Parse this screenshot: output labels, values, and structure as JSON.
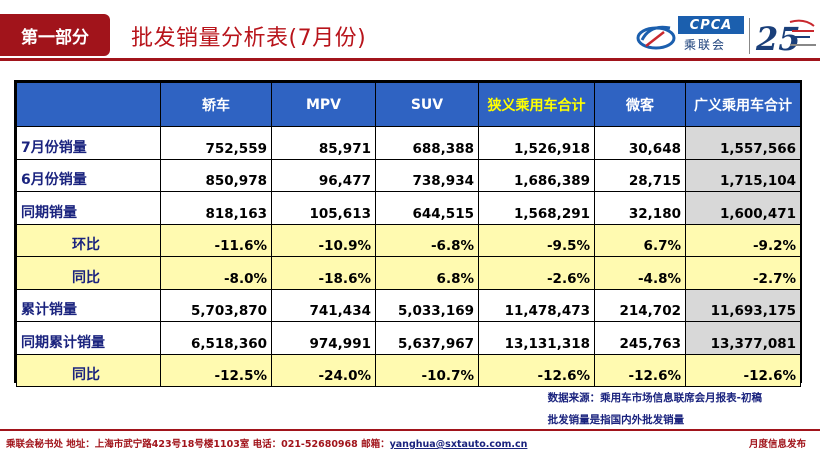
{
  "header": {
    "section_label": "第一部分",
    "title": "批发销量分析表(7月份)",
    "logo": {
      "brand_en": "CPCA",
      "brand_cn": "乘联会",
      "anniversary": "25"
    }
  },
  "table": {
    "columns": [
      "",
      "轿车",
      "MPV",
      "SUV",
      "狭义乘用车合计",
      "微客",
      "广义乘用车合计"
    ],
    "rows": [
      {
        "label": "7月份销量",
        "values": [
          "752,559",
          "85,971",
          "688,388",
          "1,526,918",
          "30,648",
          "1,557,566"
        ]
      },
      {
        "label": "6月份销量",
        "values": [
          "850,978",
          "96,477",
          "738,934",
          "1,686,389",
          "28,715",
          "1,715,104"
        ]
      },
      {
        "label": "同期销量",
        "values": [
          "818,163",
          "105,613",
          "644,515",
          "1,568,291",
          "32,180",
          "1,600,471"
        ]
      },
      {
        "label": "环比",
        "values": [
          "-11.6%",
          "-10.9%",
          "-6.8%",
          "-9.5%",
          "6.7%",
          "-9.2%"
        ]
      },
      {
        "label": "同比",
        "values": [
          "-8.0%",
          "-18.6%",
          "6.8%",
          "-2.6%",
          "-4.8%",
          "-2.7%"
        ]
      },
      {
        "label": "累计销量",
        "values": [
          "5,703,870",
          "741,434",
          "5,033,169",
          "11,478,473",
          "214,702",
          "11,693,175"
        ]
      },
      {
        "label": "同期累计销量",
        "values": [
          "6,518,360",
          "974,991",
          "5,637,967",
          "13,131,318",
          "245,763",
          "13,377,081"
        ]
      },
      {
        "label": "同比",
        "values": [
          "-12.5%",
          "-24.0%",
          "-10.7%",
          "-12.6%",
          "-12.6%",
          "-12.6%"
        ]
      }
    ]
  },
  "notes": [
    "数据来源：乘用车市场信息联席会月报表-初稿",
    "批发销量是指国内外批发销量"
  ],
  "footer": {
    "address": "乘联会秘书处   地址：上海市武宁路423号18号楼1103室  电话：021-52680968   邮箱：",
    "email": "yanghua@sxtauto.com.cn",
    "right": "月度信息发布"
  },
  "colors": {
    "brand_red": "#a1141b",
    "header_blue": "#2f63c2",
    "highlight_yellow": "#fffab0",
    "total_gray": "#d8d8d8"
  }
}
